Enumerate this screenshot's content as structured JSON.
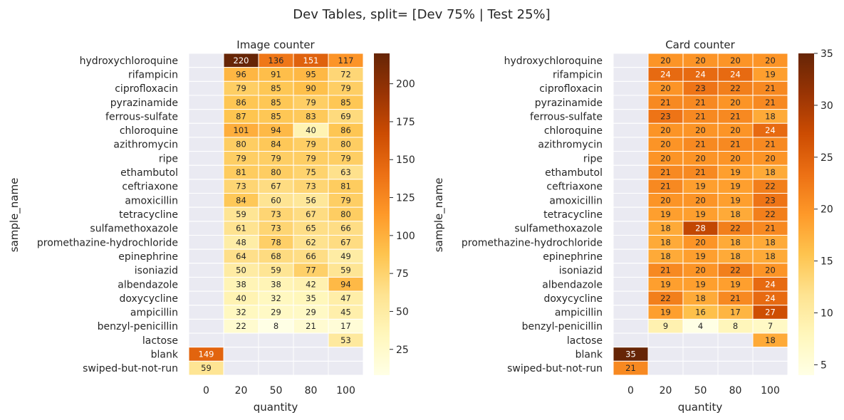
{
  "figure": {
    "title": "Dev Tables, split= [Dev 75% | Test 25%]"
  },
  "colors": {
    "nan_background": "#eaeaf2",
    "cell_border": "#ffffff",
    "colormap": "YlOrBr",
    "text_dark": "#262626",
    "text_light": "#ffffff"
  },
  "chart_data": [
    {
      "type": "heatmap",
      "title": "Image counter",
      "xlabel": "quantity",
      "ylabel": "sample_name",
      "x_categories": [
        "0",
        "20",
        "50",
        "80",
        "100"
      ],
      "y_categories": [
        "hydroxychloroquine",
        "rifampicin",
        "ciprofloxacin",
        "pyrazinamide",
        "ferrous-sulfate",
        "chloroquine",
        "azithromycin",
        "ripe",
        "ethambutol",
        "ceftriaxone",
        "amoxicillin",
        "tetracycline",
        "sulfamethoxazole",
        "promethazine-hydrochloride",
        "epinephrine",
        "isoniazid",
        "albendazole",
        "doxycycline",
        "ampicillin",
        "benzyl-penicillin",
        "lactose",
        "blank",
        "swiped-but-not-run"
      ],
      "values": [
        [
          null,
          220,
          136,
          151,
          117
        ],
        [
          null,
          96,
          91,
          95,
          72
        ],
        [
          null,
          79,
          85,
          90,
          79
        ],
        [
          null,
          86,
          85,
          79,
          85
        ],
        [
          null,
          87,
          85,
          83,
          69
        ],
        [
          null,
          101,
          94,
          40,
          86
        ],
        [
          null,
          80,
          84,
          79,
          80
        ],
        [
          null,
          79,
          79,
          79,
          79
        ],
        [
          null,
          81,
          80,
          75,
          63
        ],
        [
          null,
          73,
          67,
          73,
          81
        ],
        [
          null,
          84,
          60,
          56,
          79
        ],
        [
          null,
          59,
          73,
          67,
          80
        ],
        [
          null,
          61,
          73,
          65,
          66
        ],
        [
          null,
          48,
          78,
          62,
          67
        ],
        [
          null,
          64,
          68,
          66,
          49
        ],
        [
          null,
          50,
          59,
          77,
          59
        ],
        [
          null,
          38,
          38,
          42,
          94
        ],
        [
          null,
          40,
          32,
          35,
          47
        ],
        [
          null,
          32,
          29,
          29,
          45
        ],
        [
          null,
          22,
          8,
          21,
          17
        ],
        [
          null,
          null,
          null,
          null,
          53
        ],
        [
          149,
          null,
          null,
          null,
          null
        ],
        [
          59,
          null,
          null,
          null,
          null
        ]
      ],
      "colorbar": {
        "vmin": 8,
        "vmax": 220,
        "ticks": [
          25,
          50,
          75,
          100,
          125,
          150,
          175,
          200
        ]
      }
    },
    {
      "type": "heatmap",
      "title": "Card counter",
      "xlabel": "quantity",
      "ylabel": "sample_name",
      "x_categories": [
        "0",
        "20",
        "50",
        "80",
        "100"
      ],
      "y_categories": [
        "hydroxychloroquine",
        "rifampicin",
        "ciprofloxacin",
        "pyrazinamide",
        "ferrous-sulfate",
        "chloroquine",
        "azithromycin",
        "ripe",
        "ethambutol",
        "ceftriaxone",
        "amoxicillin",
        "tetracycline",
        "sulfamethoxazole",
        "promethazine-hydrochloride",
        "epinephrine",
        "isoniazid",
        "albendazole",
        "doxycycline",
        "ampicillin",
        "benzyl-penicillin",
        "lactose",
        "blank",
        "swiped-but-not-run"
      ],
      "values": [
        [
          null,
          20,
          20,
          20,
          20
        ],
        [
          null,
          24,
          24,
          24,
          19
        ],
        [
          null,
          20,
          23,
          22,
          21
        ],
        [
          null,
          21,
          21,
          20,
          21
        ],
        [
          null,
          23,
          21,
          21,
          18
        ],
        [
          null,
          20,
          20,
          20,
          24
        ],
        [
          null,
          20,
          21,
          21,
          21
        ],
        [
          null,
          20,
          20,
          20,
          20
        ],
        [
          null,
          21,
          21,
          19,
          18
        ],
        [
          null,
          21,
          19,
          19,
          22
        ],
        [
          null,
          20,
          20,
          19,
          23
        ],
        [
          null,
          19,
          19,
          18,
          22
        ],
        [
          null,
          18,
          28,
          22,
          21
        ],
        [
          null,
          18,
          20,
          18,
          18
        ],
        [
          null,
          18,
          19,
          18,
          18
        ],
        [
          null,
          21,
          20,
          22,
          20
        ],
        [
          null,
          19,
          19,
          19,
          24
        ],
        [
          null,
          22,
          18,
          21,
          24
        ],
        [
          null,
          19,
          16,
          17,
          27
        ],
        [
          null,
          9,
          4,
          8,
          7
        ],
        [
          null,
          null,
          null,
          null,
          18
        ],
        [
          35,
          null,
          null,
          null,
          null
        ],
        [
          21,
          null,
          null,
          null,
          null
        ]
      ],
      "colorbar": {
        "vmin": 4,
        "vmax": 35,
        "ticks": [
          5,
          10,
          15,
          20,
          25,
          30,
          35
        ]
      }
    }
  ]
}
